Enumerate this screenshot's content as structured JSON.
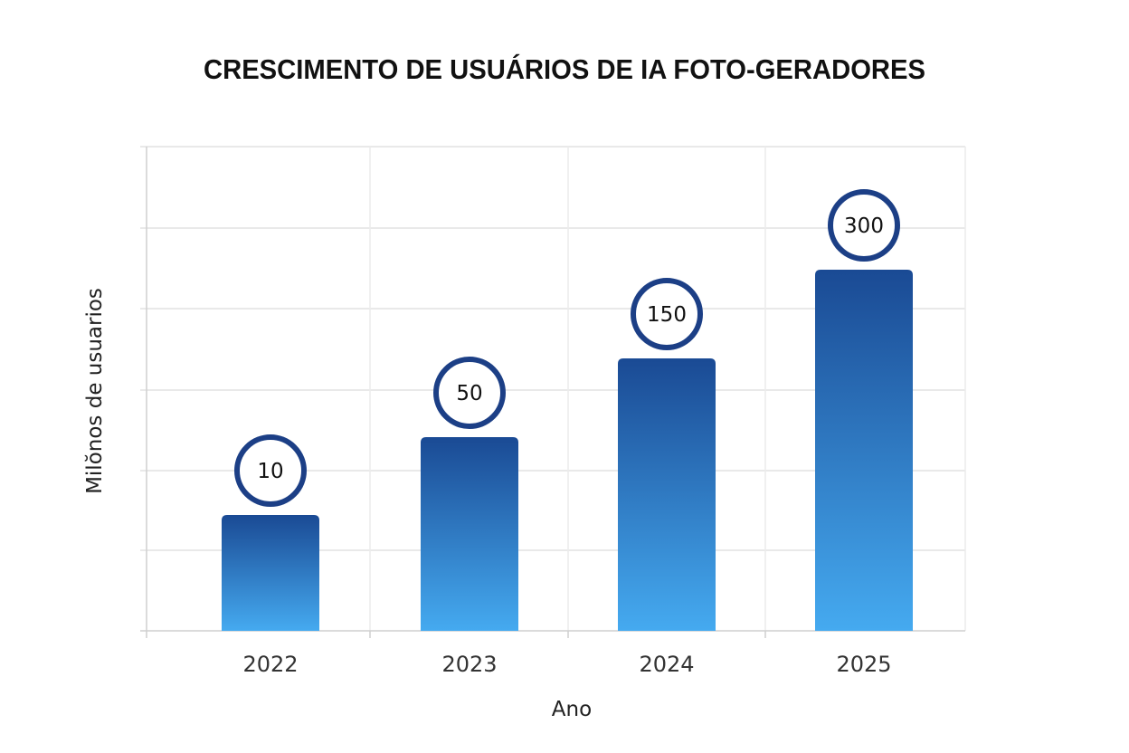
{
  "chart_data": {
    "type": "bar",
    "title": "CRESCIMENTO DE USUÁRIOS DE IA FOTO-GERADORES",
    "xlabel": "Ano",
    "ylabel": "Milŏnos de usuarios",
    "categories": [
      "2022",
      "2023",
      "2024",
      "2025"
    ],
    "values": [
      10,
      50,
      150,
      300
    ],
    "data_labels": [
      "10",
      "50",
      "150",
      "300"
    ],
    "grid": true,
    "y_tick_labels_shown": false,
    "colors": {
      "bar_top": "#1a4a94",
      "bar_bottom": "#45aaf0",
      "label_ring": "#1c3f86",
      "grid": "#e2e2e2"
    }
  }
}
